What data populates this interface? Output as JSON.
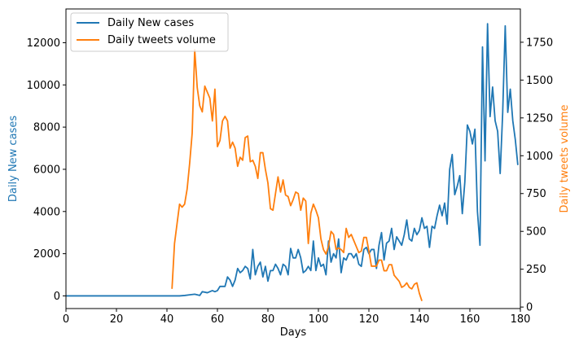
{
  "chart_data": {
    "type": "line",
    "xlabel": "Days",
    "xlim": [
      0,
      180
    ],
    "x_ticks": [
      0,
      20,
      40,
      60,
      80,
      100,
      120,
      140,
      160,
      180
    ],
    "grid": false,
    "legend_position": "top-left",
    "colors": {
      "cases": "#1f77b4",
      "tweets": "#ff7f0e"
    },
    "left_axis": {
      "label": "Daily New cases",
      "ylim": [
        -600,
        13600
      ],
      "ticks": [
        0,
        2000,
        4000,
        6000,
        8000,
        10000,
        12000
      ]
    },
    "right_axis": {
      "label": "Daily tweets volume",
      "ylim": [
        -10,
        1970
      ],
      "ticks": [
        0,
        250,
        500,
        750,
        1000,
        1250,
        1500,
        1750
      ]
    },
    "series": [
      {
        "name": "Daily New cases",
        "axis": "left",
        "color": "#1f77b4",
        "points": [
          [
            0,
            0
          ],
          [
            10,
            0
          ],
          [
            20,
            0
          ],
          [
            30,
            0
          ],
          [
            40,
            0
          ],
          [
            45,
            0
          ],
          [
            47,
            20
          ],
          [
            49,
            50
          ],
          [
            51,
            80
          ],
          [
            53,
            20
          ],
          [
            54,
            200
          ],
          [
            56,
            150
          ],
          [
            58,
            250
          ],
          [
            59,
            200
          ],
          [
            60,
            250
          ],
          [
            61,
            450
          ],
          [
            63,
            450
          ],
          [
            64,
            900
          ],
          [
            65,
            750
          ],
          [
            66,
            450
          ],
          [
            67,
            750
          ],
          [
            68,
            1300
          ],
          [
            69,
            1100
          ],
          [
            70,
            1200
          ],
          [
            71,
            1400
          ],
          [
            72,
            1300
          ],
          [
            73,
            800
          ],
          [
            74,
            2200
          ],
          [
            75,
            1000
          ],
          [
            76,
            1400
          ],
          [
            77,
            1600
          ],
          [
            78,
            900
          ],
          [
            79,
            1400
          ],
          [
            80,
            700
          ],
          [
            81,
            1200
          ],
          [
            82,
            1200
          ],
          [
            83,
            1500
          ],
          [
            84,
            1300
          ],
          [
            85,
            1000
          ],
          [
            86,
            1500
          ],
          [
            87,
            1400
          ],
          [
            88,
            1000
          ],
          [
            89,
            2250
          ],
          [
            90,
            1800
          ],
          [
            91,
            1800
          ],
          [
            92,
            2200
          ],
          [
            93,
            1800
          ],
          [
            94,
            1100
          ],
          [
            95,
            1200
          ],
          [
            96,
            1400
          ],
          [
            97,
            1200
          ],
          [
            98,
            2600
          ],
          [
            99,
            1200
          ],
          [
            100,
            1800
          ],
          [
            101,
            1400
          ],
          [
            102,
            1500
          ],
          [
            103,
            1000
          ],
          [
            104,
            2600
          ],
          [
            105,
            1600
          ],
          [
            106,
            2000
          ],
          [
            107,
            1800
          ],
          [
            108,
            2700
          ],
          [
            109,
            1100
          ],
          [
            110,
            1800
          ],
          [
            111,
            1700
          ],
          [
            112,
            2000
          ],
          [
            113,
            2000
          ],
          [
            114,
            1800
          ],
          [
            115,
            2000
          ],
          [
            116,
            1500
          ],
          [
            117,
            1400
          ],
          [
            118,
            2200
          ],
          [
            119,
            2300
          ],
          [
            120,
            2000
          ],
          [
            121,
            2200
          ],
          [
            122,
            2200
          ],
          [
            123,
            1300
          ],
          [
            124,
            2400
          ],
          [
            125,
            3000
          ],
          [
            126,
            1700
          ],
          [
            127,
            2500
          ],
          [
            128,
            2600
          ],
          [
            129,
            3200
          ],
          [
            130,
            2200
          ],
          [
            131,
            2800
          ],
          [
            132,
            2600
          ],
          [
            133,
            2400
          ],
          [
            134,
            2900
          ],
          [
            135,
            3600
          ],
          [
            136,
            2700
          ],
          [
            137,
            2600
          ],
          [
            138,
            3200
          ],
          [
            139,
            2900
          ],
          [
            140,
            3100
          ],
          [
            141,
            3700
          ],
          [
            142,
            3200
          ],
          [
            143,
            3300
          ],
          [
            144,
            2300
          ],
          [
            145,
            3300
          ],
          [
            146,
            3200
          ],
          [
            147,
            3800
          ],
          [
            148,
            4300
          ],
          [
            149,
            3800
          ],
          [
            150,
            4400
          ],
          [
            151,
            3400
          ],
          [
            152,
            6000
          ],
          [
            153,
            6700
          ],
          [
            154,
            4800
          ],
          [
            155,
            5200
          ],
          [
            156,
            5700
          ],
          [
            157,
            3900
          ],
          [
            158,
            5400
          ],
          [
            159,
            8100
          ],
          [
            160,
            7800
          ],
          [
            161,
            7200
          ],
          [
            162,
            7900
          ],
          [
            163,
            4000
          ],
          [
            164,
            2400
          ],
          [
            165,
            11800
          ],
          [
            166,
            6400
          ],
          [
            167,
            12900
          ],
          [
            168,
            8500
          ],
          [
            169,
            9900
          ],
          [
            170,
            8300
          ],
          [
            171,
            7800
          ],
          [
            172,
            5800
          ],
          [
            173,
            8700
          ],
          [
            174,
            12800
          ],
          [
            175,
            8700
          ],
          [
            176,
            9800
          ],
          [
            177,
            8300
          ],
          [
            178,
            7400
          ],
          [
            179,
            6200
          ]
        ]
      },
      {
        "name": "Daily tweets volume",
        "axis": "right",
        "color": "#ff7f0e",
        "points": [
          [
            42,
            120
          ],
          [
            43,
            420
          ],
          [
            44,
            550
          ],
          [
            45,
            680
          ],
          [
            46,
            660
          ],
          [
            47,
            680
          ],
          [
            48,
            780
          ],
          [
            49,
            950
          ],
          [
            50,
            1150
          ],
          [
            51,
            1700
          ],
          [
            52,
            1450
          ],
          [
            53,
            1330
          ],
          [
            54,
            1290
          ],
          [
            55,
            1460
          ],
          [
            56,
            1420
          ],
          [
            57,
            1380
          ],
          [
            58,
            1230
          ],
          [
            59,
            1440
          ],
          [
            60,
            1060
          ],
          [
            61,
            1100
          ],
          [
            62,
            1230
          ],
          [
            63,
            1260
          ],
          [
            64,
            1230
          ],
          [
            65,
            1050
          ],
          [
            66,
            1090
          ],
          [
            67,
            1050
          ],
          [
            68,
            930
          ],
          [
            69,
            990
          ],
          [
            70,
            970
          ],
          [
            71,
            1120
          ],
          [
            72,
            1130
          ],
          [
            73,
            960
          ],
          [
            74,
            970
          ],
          [
            75,
            930
          ],
          [
            76,
            850
          ],
          [
            77,
            1020
          ],
          [
            78,
            1020
          ],
          [
            79,
            910
          ],
          [
            80,
            820
          ],
          [
            81,
            650
          ],
          [
            82,
            640
          ],
          [
            83,
            750
          ],
          [
            84,
            860
          ],
          [
            85,
            760
          ],
          [
            86,
            840
          ],
          [
            87,
            740
          ],
          [
            88,
            730
          ],
          [
            89,
            670
          ],
          [
            90,
            710
          ],
          [
            91,
            760
          ],
          [
            92,
            750
          ],
          [
            93,
            640
          ],
          [
            94,
            720
          ],
          [
            95,
            700
          ],
          [
            96,
            420
          ],
          [
            97,
            620
          ],
          [
            98,
            680
          ],
          [
            99,
            640
          ],
          [
            100,
            590
          ],
          [
            101,
            450
          ],
          [
            102,
            380
          ],
          [
            103,
            350
          ],
          [
            104,
            400
          ],
          [
            105,
            500
          ],
          [
            106,
            480
          ],
          [
            107,
            380
          ],
          [
            108,
            390
          ],
          [
            109,
            380
          ],
          [
            110,
            360
          ],
          [
            111,
            520
          ],
          [
            112,
            460
          ],
          [
            113,
            480
          ],
          [
            114,
            440
          ],
          [
            115,
            400
          ],
          [
            116,
            360
          ],
          [
            117,
            370
          ],
          [
            118,
            460
          ],
          [
            119,
            460
          ],
          [
            120,
            370
          ],
          [
            121,
            270
          ],
          [
            122,
            270
          ],
          [
            123,
            270
          ],
          [
            124,
            310
          ],
          [
            125,
            310
          ],
          [
            126,
            240
          ],
          [
            127,
            240
          ],
          [
            128,
            280
          ],
          [
            129,
            280
          ],
          [
            130,
            210
          ],
          [
            131,
            190
          ],
          [
            132,
            170
          ],
          [
            133,
            130
          ],
          [
            134,
            140
          ],
          [
            135,
            160
          ],
          [
            136,
            130
          ],
          [
            137,
            120
          ],
          [
            138,
            150
          ],
          [
            139,
            160
          ],
          [
            140,
            90
          ],
          [
            141,
            40
          ]
        ]
      }
    ]
  }
}
